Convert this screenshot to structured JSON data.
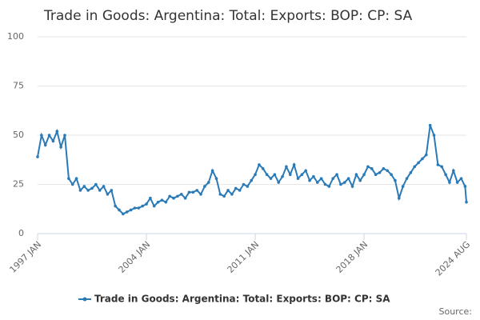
{
  "chart_data": {
    "type": "line",
    "title": "Trade in Goods: Argentina: Total: Exports: BOP: CP: SA",
    "source": "Source:",
    "x": [
      "1997 JAN",
      "1997 APR",
      "1997 JUL",
      "1997 OCT",
      "1998 JAN",
      "1998 APR",
      "1998 JUL",
      "1998 OCT",
      "1999 JAN",
      "1999 APR",
      "1999 JUL",
      "1999 OCT",
      "2000 JAN",
      "2000 APR",
      "2000 JUL",
      "2000 OCT",
      "2001 JAN",
      "2001 APR",
      "2001 JUL",
      "2001 OCT",
      "2002 JAN",
      "2002 APR",
      "2002 JUL",
      "2002 OCT",
      "2003 JAN",
      "2003 APR",
      "2003 JUL",
      "2003 OCT",
      "2004 JAN",
      "2004 APR",
      "2004 JUL",
      "2004 OCT",
      "2005 JAN",
      "2005 APR",
      "2005 JUL",
      "2005 OCT",
      "2006 JAN",
      "2006 APR",
      "2006 JUL",
      "2006 OCT",
      "2007 JAN",
      "2007 APR",
      "2007 JUL",
      "2007 OCT",
      "2008 JAN",
      "2008 APR",
      "2008 JUL",
      "2008 OCT",
      "2009 JAN",
      "2009 APR",
      "2009 JUL",
      "2009 OCT",
      "2010 JAN",
      "2010 APR",
      "2010 JUL",
      "2010 OCT",
      "2011 JAN",
      "2011 APR",
      "2011 JUL",
      "2011 OCT",
      "2012 JAN",
      "2012 APR",
      "2012 JUL",
      "2012 OCT",
      "2013 JAN",
      "2013 APR",
      "2013 JUL",
      "2013 OCT",
      "2014 JAN",
      "2014 APR",
      "2014 JUL",
      "2014 OCT",
      "2015 JAN",
      "2015 APR",
      "2015 JUL",
      "2015 OCT",
      "2016 JAN",
      "2016 APR",
      "2016 JUL",
      "2016 OCT",
      "2017 JAN",
      "2017 APR",
      "2017 JUL",
      "2017 OCT",
      "2018 JAN",
      "2018 APR",
      "2018 JUL",
      "2018 OCT",
      "2019 JAN",
      "2019 APR",
      "2019 JUL",
      "2019 OCT",
      "2020 JAN",
      "2020 APR",
      "2020 JUL",
      "2020 OCT",
      "2021 JAN",
      "2021 APR",
      "2021 JUL",
      "2021 OCT",
      "2022 JAN",
      "2022 APR",
      "2022 JUL",
      "2022 OCT",
      "2023 JAN",
      "2023 APR",
      "2023 JUL",
      "2023 OCT",
      "2024 JAN",
      "2024 APR",
      "2024 JUL",
      "2024 AUG"
    ],
    "series": [
      {
        "name": "Trade in Goods: Argentina: Total: Exports: BOP: CP: SA",
        "color": "#2a7ab8",
        "values": [
          39,
          50,
          45,
          50,
          47,
          52,
          44,
          50,
          28,
          25,
          28,
          22,
          24,
          22,
          23,
          25,
          22,
          24,
          20,
          22,
          14,
          12,
          10,
          11,
          12,
          13,
          13,
          14,
          15,
          18,
          14,
          16,
          17,
          16,
          19,
          18,
          19,
          20,
          18,
          21,
          21,
          22,
          20,
          24,
          26,
          32,
          28,
          20,
          19,
          22,
          20,
          23,
          22,
          25,
          24,
          27,
          30,
          35,
          33,
          30,
          28,
          30,
          26,
          29,
          34,
          30,
          35,
          28,
          30,
          32,
          27,
          29,
          26,
          28,
          25,
          24,
          28,
          30,
          25,
          26,
          28,
          24,
          30,
          27,
          30,
          34,
          33,
          30,
          31,
          33,
          32,
          30,
          27,
          18,
          24,
          28,
          31,
          34,
          36,
          38,
          40,
          55,
          50,
          35,
          34,
          30,
          26,
          32,
          26,
          28,
          24,
          16
        ]
      }
    ],
    "xlim": [
      "1997 JAN",
      "2024 AUG"
    ],
    "xticks": [
      "1997 JAN",
      "2004 JAN",
      "2011 JAN",
      "2018 JAN",
      "2024 AUG"
    ],
    "ylim": [
      0,
      100
    ],
    "yticks": [
      0,
      25,
      50,
      75,
      100
    ],
    "grid": true
  }
}
